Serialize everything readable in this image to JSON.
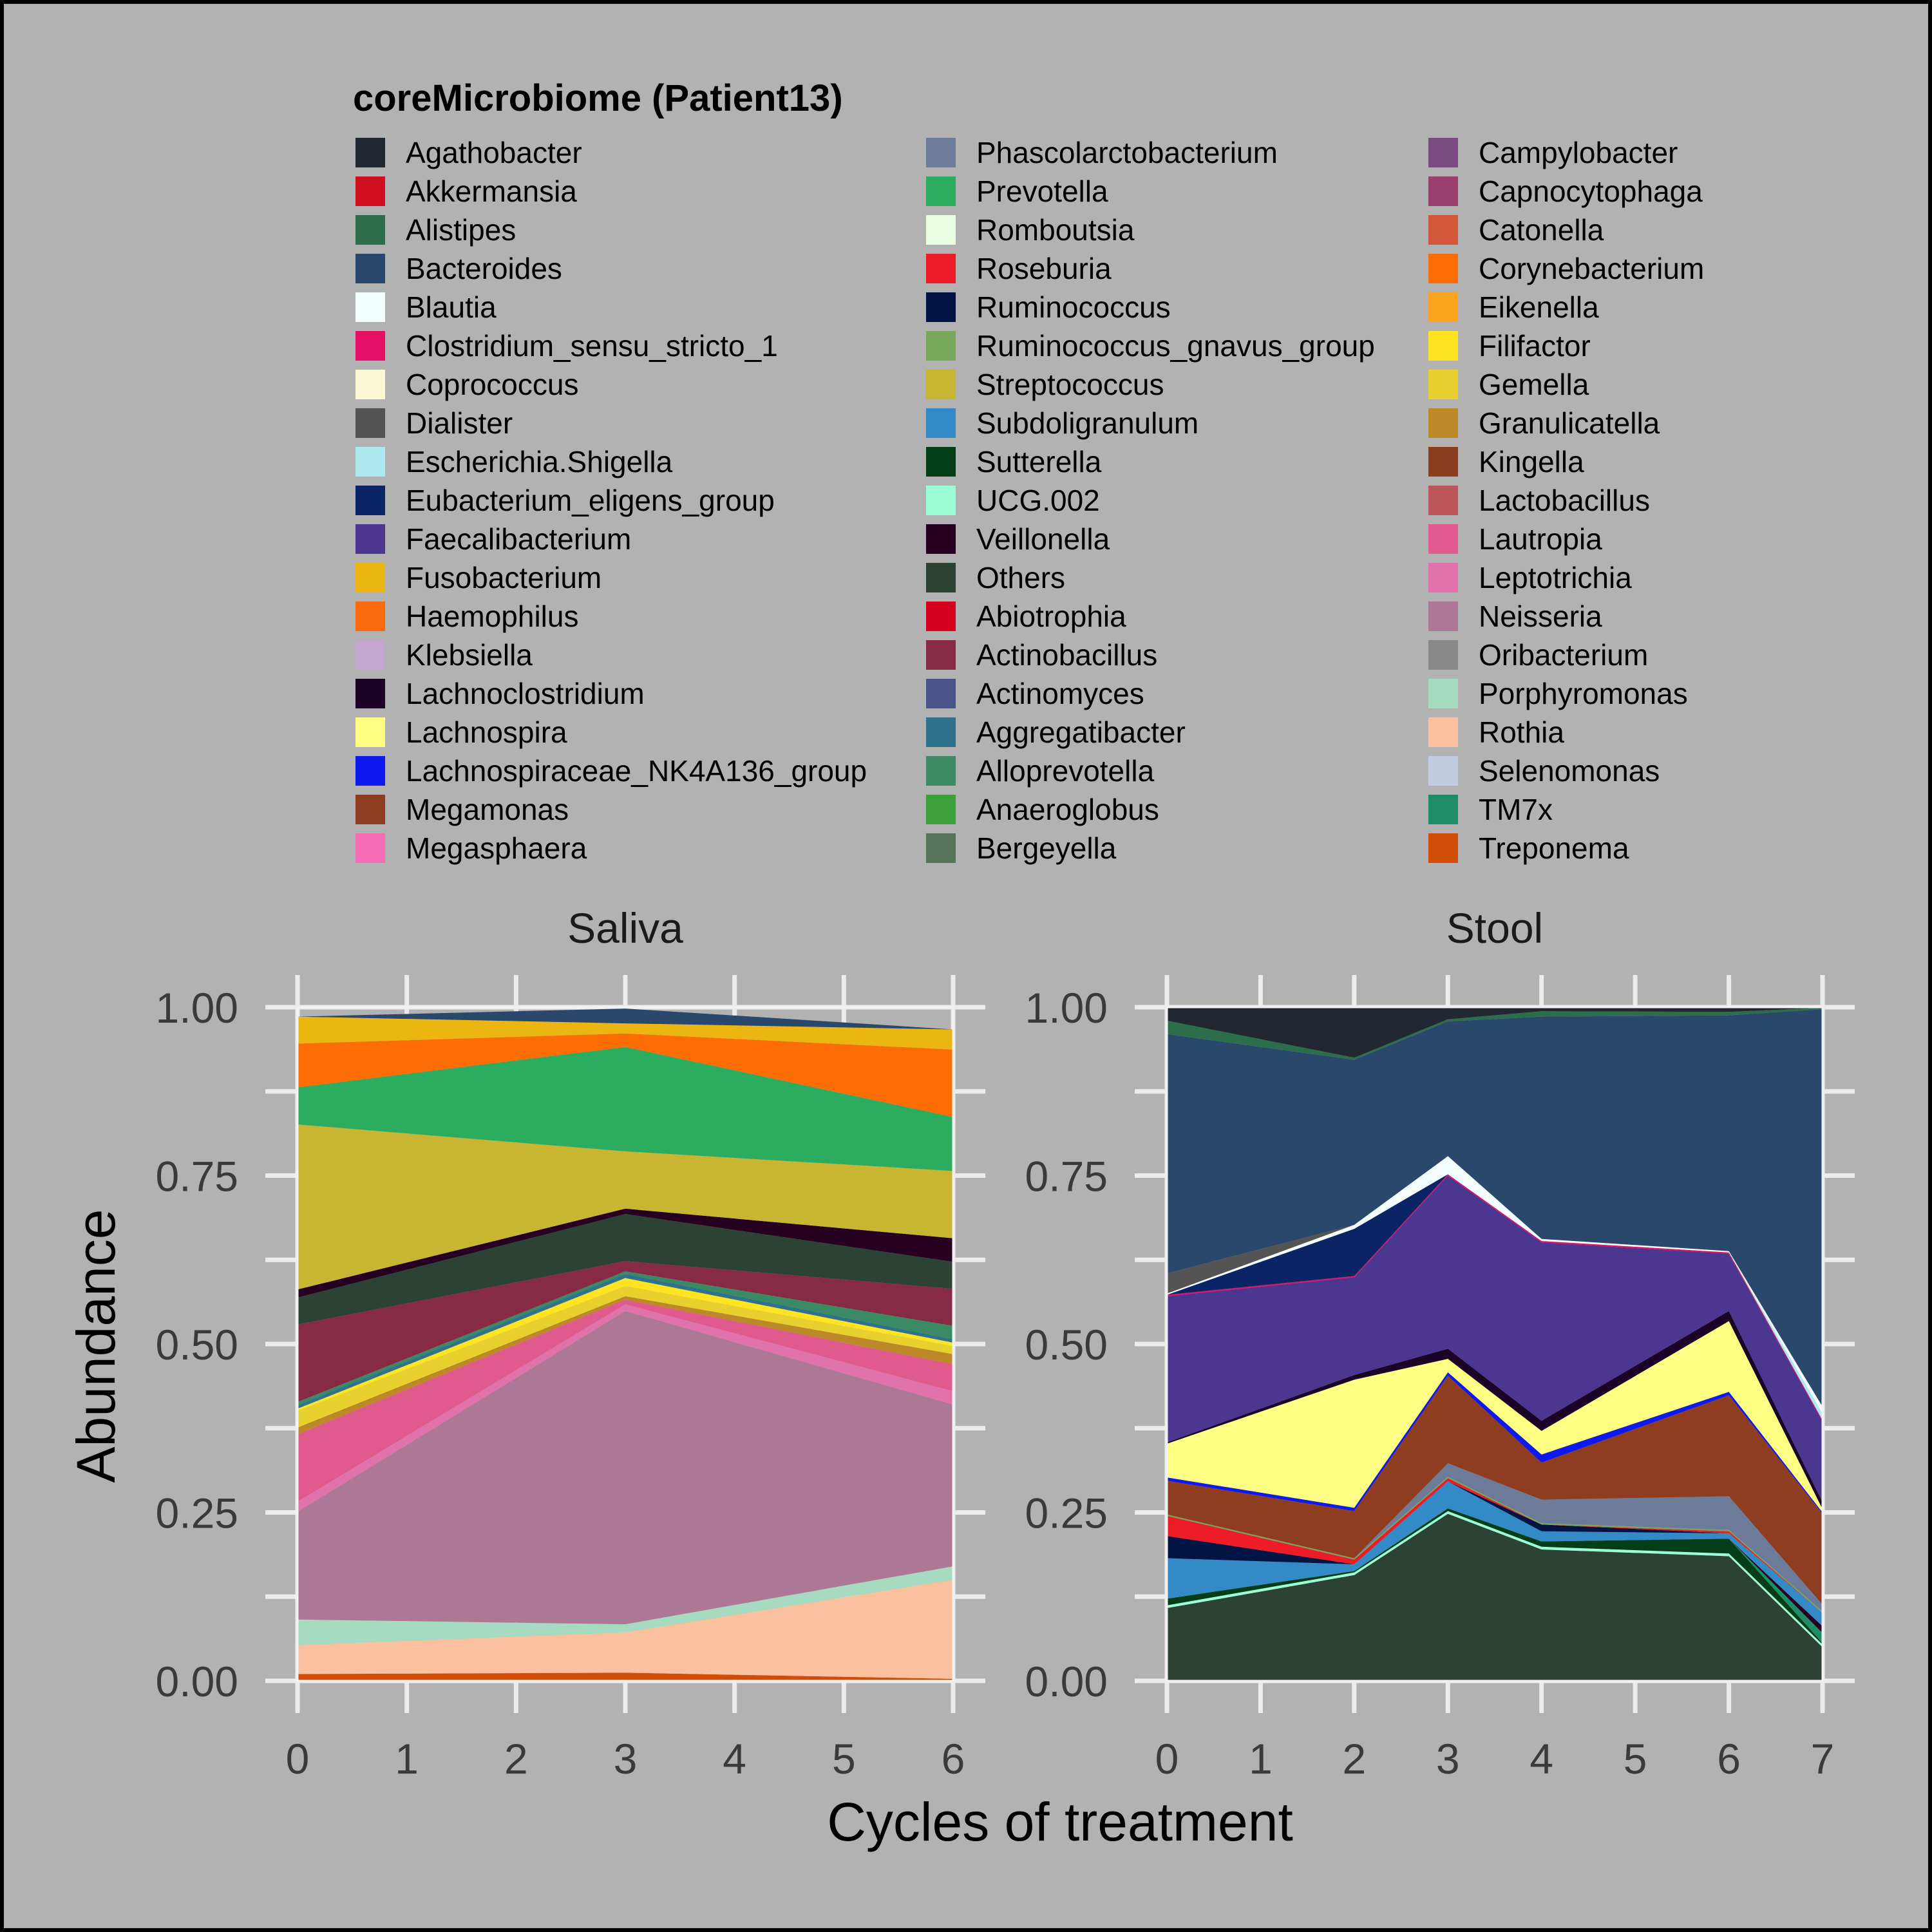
{
  "chart_data": {
    "type": "area",
    "stacked": true,
    "normalized": true,
    "background": "#b2b2b2",
    "grid": true,
    "legend_position": "top",
    "legend_title": "coreMicrobiome (Patient13)",
    "xlabel": "Cycles of treatment",
    "ylabel": "Abundance",
    "ylim": [
      0,
      1
    ],
    "yticks": [
      "0.00",
      "0.25",
      "0.50",
      "0.75",
      "1.00"
    ],
    "legend_order": [
      "Agathobacter",
      "Akkermansia",
      "Alistipes",
      "Bacteroides",
      "Blautia",
      "Clostridium_sensu_stricto_1",
      "Coprococcus",
      "Dialister",
      "Escherichia.Shigella",
      "Eubacterium_eligens_group",
      "Faecalibacterium",
      "Fusobacterium",
      "Haemophilus",
      "Klebsiella",
      "Lachnoclostridium",
      "Lachnospira",
      "Lachnospiraceae_NK4A136_group",
      "Megamonas",
      "Megasphaera",
      "Phascolarctobacterium",
      "Prevotella",
      "Romboutsia",
      "Roseburia",
      "Ruminococcus",
      "Ruminococcus_gnavus_group",
      "Streptococcus",
      "Subdoligranulum",
      "Sutterella",
      "UCG.002",
      "Veillonella",
      "Others",
      "Abiotrophia",
      "Actinobacillus",
      "Actinomyces",
      "Aggregatibacter",
      "Alloprevotella",
      "Anaeroglobus",
      "Bergeyella",
      "Campylobacter",
      "Capnocytophaga",
      "Catonella",
      "Corynebacterium",
      "Eikenella",
      "Filifactor",
      "Gemella",
      "Granulicatella",
      "Kingella",
      "Lactobacillus",
      "Lautropia",
      "Leptotrichia",
      "Neisseria",
      "Oribacterium",
      "Porphyromonas",
      "Rothia",
      "Selenomonas",
      "TM7x",
      "Treponema"
    ],
    "colors": {
      "Agathobacter": "#222831",
      "Akkermansia": "#cf0e20",
      "Alistipes": "#2c6e4b",
      "Bacteroides": "#29486b",
      "Blautia": "#f4fdfd",
      "Clostridium_sensu_stricto_1": "#e60f66",
      "Coprococcus": "#fbf8d6",
      "Dialister": "#545454",
      "Escherichia.Shigella": "#aee9ef",
      "Eubacterium_eligens_group": "#0a2466",
      "Faecalibacterium": "#4b3690",
      "Fusobacterium": "#ecb612",
      "Haemophilus": "#fa6b0f",
      "Klebsiella": "#c4a6cf",
      "Lachnoclostridium": "#1b0428",
      "Lachnospira": "#fefe84",
      "Lachnospiraceae_NK4A136_group": "#0e19f0",
      "Megamonas": "#8f3d20",
      "Megasphaera": "#f46bb6",
      "Phascolarctobacterium": "#6c7c98",
      "Prevotella": "#2bac5f",
      "Romboutsia": "#ebfde0",
      "Roseburia": "#ed1c26",
      "Ruminococcus": "#021443",
      "Ruminococcus_gnavus_group": "#77a759",
      "Streptococcus": "#c8b532",
      "Subdoligranulum": "#338ac6",
      "Sutterella": "#033e18",
      "UCG.002": "#9cfcd6",
      "Veillonella": "#270021",
      "Others": "#2c4235",
      "Abiotrophia": "#d5001d",
      "Actinobacillus": "#872a45",
      "Actinomyces": "#49538c",
      "Aggregatibacter": "#2e728c",
      "Alloprevotella": "#3a8a65",
      "Anaeroglobus": "#3da13b",
      "Bergeyella": "#56745a",
      "Campylobacter": "#7b4c81",
      "Capnocytophaga": "#9b3f6e",
      "Catonella": "#d25839",
      "Corynebacterium": "#fd6d06",
      "Eikenella": "#fca41d",
      "Filifactor": "#fee421",
      "Gemella": "#e8d02e",
      "Granulicatella": "#bd8827",
      "Kingella": "#8b3e1e",
      "Lactobacillus": "#bc585b",
      "Lautropia": "#e15a8e",
      "Leptotrichia": "#df72ab",
      "Neisseria": "#ad7896",
      "Oribacterium": "#888888",
      "Porphyromonas": "#a6dbc2",
      "Rothia": "#fbc19f",
      "Selenomonas": "#c3cce0",
      "TM7x": "#1e8c67",
      "Treponema": "#d04c07"
    },
    "panels": [
      {
        "title": "Saliva",
        "x": [
          0,
          3,
          6
        ],
        "xlim": [
          0,
          6
        ],
        "xticks": [
          "0",
          "1",
          "2",
          "3",
          "4",
          "5",
          "6"
        ],
        "layers": [
          {
            "name": "Treponema",
            "values": [
              0.01,
              0.012,
              0.003
            ]
          },
          {
            "name": "Rothia",
            "values": [
              0.043,
              0.06,
              0.147
            ]
          },
          {
            "name": "Porphyromonas",
            "values": [
              0.038,
              0.012,
              0.02
            ]
          },
          {
            "name": "Neisseria",
            "values": [
              0.16,
              0.465,
              0.24
            ]
          },
          {
            "name": "Leptotrichia",
            "values": [
              0.015,
              0.01,
              0.02
            ]
          },
          {
            "name": "Lautropia",
            "values": [
              0.1,
              0.007,
              0.04
            ]
          },
          {
            "name": "Granulicatella",
            "values": [
              0.01,
              0.005,
              0.015
            ]
          },
          {
            "name": "Gemella",
            "values": [
              0.025,
              0.015,
              0.012
            ]
          },
          {
            "name": "Filifactor",
            "values": [
              0.003,
              0.012,
              0.005
            ]
          },
          {
            "name": "Aggregatibacter",
            "values": [
              0.005,
              0.006,
              0.005
            ]
          },
          {
            "name": "Alloprevotella",
            "values": [
              0.005,
              0.004,
              0.02
            ]
          },
          {
            "name": "Actinobacillus",
            "values": [
              0.115,
              0.015,
              0.055
            ]
          },
          {
            "name": "Others",
            "values": [
              0.04,
              0.07,
              0.04
            ]
          },
          {
            "name": "Veillonella",
            "values": [
              0.012,
              0.008,
              0.035
            ]
          },
          {
            "name": "Streptococcus",
            "values": [
              0.245,
              0.085,
              0.1
            ]
          },
          {
            "name": "Prevotella",
            "values": [
              0.055,
              0.155,
              0.08
            ]
          },
          {
            "name": "Corynebacterium",
            "values": [
              0.065,
              0.02,
              0.1
            ]
          },
          {
            "name": "Fusobacterium",
            "values": [
              0.04,
              0.015,
              0.03
            ]
          },
          {
            "name": "Bacteroides",
            "values": [
              0.0,
              0.022,
              0.0
            ]
          }
        ]
      },
      {
        "title": "Stool",
        "x": [
          0,
          2,
          3,
          4,
          6,
          7
        ],
        "xlim": [
          0,
          7
        ],
        "xticks": [
          "0",
          "1",
          "2",
          "3",
          "4",
          "5",
          "6",
          "7"
        ],
        "layers": [
          {
            "name": "Others",
            "values": [
              0.108,
              0.157,
              0.248,
              0.195,
              0.185,
              0.05
            ]
          },
          {
            "name": "UCG.002",
            "values": [
              0.004,
              0.004,
              0.004,
              0.004,
              0.004,
              0.004
            ]
          },
          {
            "name": "Sutterella",
            "values": [
              0.01,
              0.002,
              0.004,
              0.008,
              0.022,
              0.002
            ]
          },
          {
            "name": "TM7x",
            "values": [
              0.0,
              0.0,
              0.0,
              0.0,
              0.0,
              0.015
            ]
          },
          {
            "name": "Veillonella",
            "values": [
              0.0,
              0.0,
              0.0,
              0.0,
              0.0,
              0.01
            ]
          },
          {
            "name": "Subdoligranulum",
            "values": [
              0.06,
              0.01,
              0.04,
              0.015,
              0.008,
              0.02
            ]
          },
          {
            "name": "Ruminococcus",
            "values": [
              0.033,
              0.0,
              0.0,
              0.01,
              0.0,
              0.0
            ]
          },
          {
            "name": "Roseburia",
            "values": [
              0.03,
              0.007,
              0.005,
              0.0,
              0.003,
              0.0
            ]
          },
          {
            "name": "Ruminococcus_gnavus_group",
            "values": [
              0.002,
              0.002,
              0.002,
              0.002,
              0.002,
              0.002
            ]
          },
          {
            "name": "Phascolarctobacterium",
            "values": [
              0.0,
              0.0,
              0.02,
              0.035,
              0.05,
              0.01
            ]
          },
          {
            "name": "Megamonas",
            "values": [
              0.05,
              0.07,
              0.13,
              0.055,
              0.15,
              0.135
            ]
          },
          {
            "name": "Lachnospiraceae_NK4A136_group",
            "values": [
              0.005,
              0.005,
              0.005,
              0.012,
              0.005,
              0.002
            ]
          },
          {
            "name": "Lachnospira",
            "values": [
              0.05,
              0.19,
              0.02,
              0.035,
              0.105,
              0.005
            ]
          },
          {
            "name": "Lachnoclostridium",
            "values": [
              0.002,
              0.007,
              0.015,
              0.015,
              0.015,
              0.01
            ]
          },
          {
            "name": "Faecalibacterium",
            "values": [
              0.217,
              0.145,
              0.257,
              0.265,
              0.085,
              0.12
            ]
          },
          {
            "name": "Clostridium_sensu_stricto_1",
            "values": [
              0.002,
              0.002,
              0.002,
              0.002,
              0.002,
              0.002
            ]
          },
          {
            "name": "Eubacterium_eligens_group",
            "values": [
              0.0,
              0.07,
              0.0,
              0.0,
              0.0,
              0.0
            ]
          },
          {
            "name": "Escherichia.Shigella",
            "values": [
              0.0,
              0.0,
              0.0,
              0.0,
              0.0,
              0.01
            ]
          },
          {
            "name": "Blautia",
            "values": [
              0.002,
              0.006,
              0.027,
              0.003,
              0.002,
              0.01
            ]
          },
          {
            "name": "Dialister",
            "values": [
              0.03,
              0.0,
              0.0,
              0.0,
              0.0,
              0.0
            ]
          },
          {
            "name": "Bacteroides",
            "values": [
              0.355,
              0.245,
              0.2,
              0.33,
              0.35,
              0.59
            ]
          },
          {
            "name": "Alistipes",
            "values": [
              0.02,
              0.003,
              0.003,
              0.008,
              0.005,
              0.002
            ]
          },
          {
            "name": "Agathobacter",
            "values": [
              0.02,
              0.075,
              0.018,
              0.006,
              0.007,
              0.002
            ]
          }
        ]
      }
    ]
  }
}
